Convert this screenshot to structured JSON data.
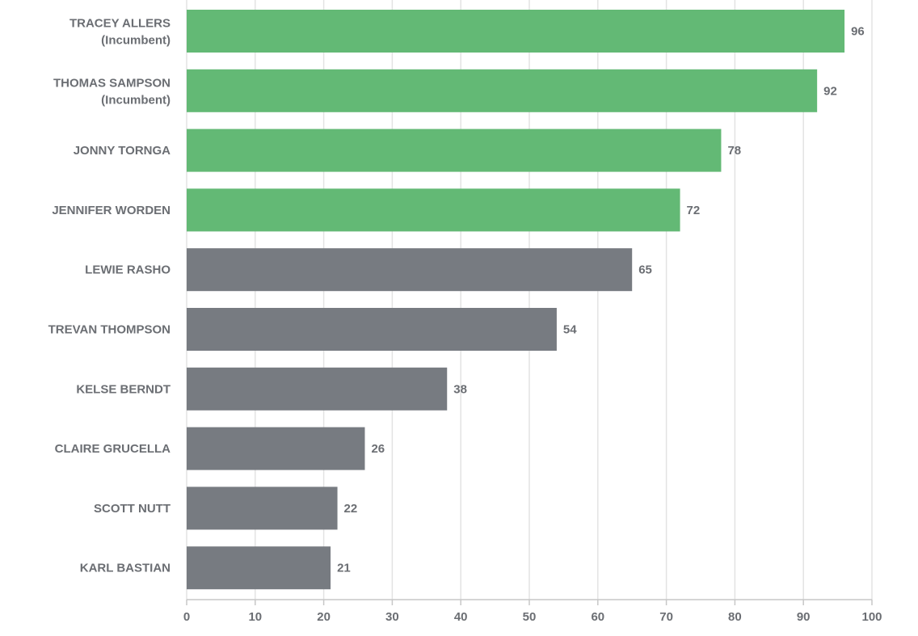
{
  "chart_data": {
    "type": "bar",
    "orientation": "horizontal",
    "categories": [
      {
        "name": "TRACEY ALLERS",
        "note": "(Incumbent)"
      },
      {
        "name": "THOMAS SAMPSON",
        "note": "(Incumbent)"
      },
      {
        "name": "JONNY TORNGA",
        "note": ""
      },
      {
        "name": "JENNIFER WORDEN",
        "note": ""
      },
      {
        "name": "LEWIE RASHO",
        "note": ""
      },
      {
        "name": "TREVAN THOMPSON",
        "note": ""
      },
      {
        "name": "KELSE BERNDT",
        "note": ""
      },
      {
        "name": "CLAIRE GRUCELLA",
        "note": ""
      },
      {
        "name": "SCOTT NUTT",
        "note": ""
      },
      {
        "name": "KARL BASTIAN",
        "note": ""
      }
    ],
    "values": [
      96,
      92,
      78,
      72,
      65,
      54,
      38,
      26,
      22,
      21
    ],
    "highlighted_count": 4,
    "colors": {
      "highlight": "#63b975",
      "other": "#777b81"
    },
    "xlim": [
      0,
      100
    ],
    "xticks": [
      0,
      10,
      20,
      30,
      40,
      50,
      60,
      70,
      80,
      90,
      100
    ],
    "grid": true,
    "title": "",
    "xlabel": "",
    "ylabel": ""
  }
}
